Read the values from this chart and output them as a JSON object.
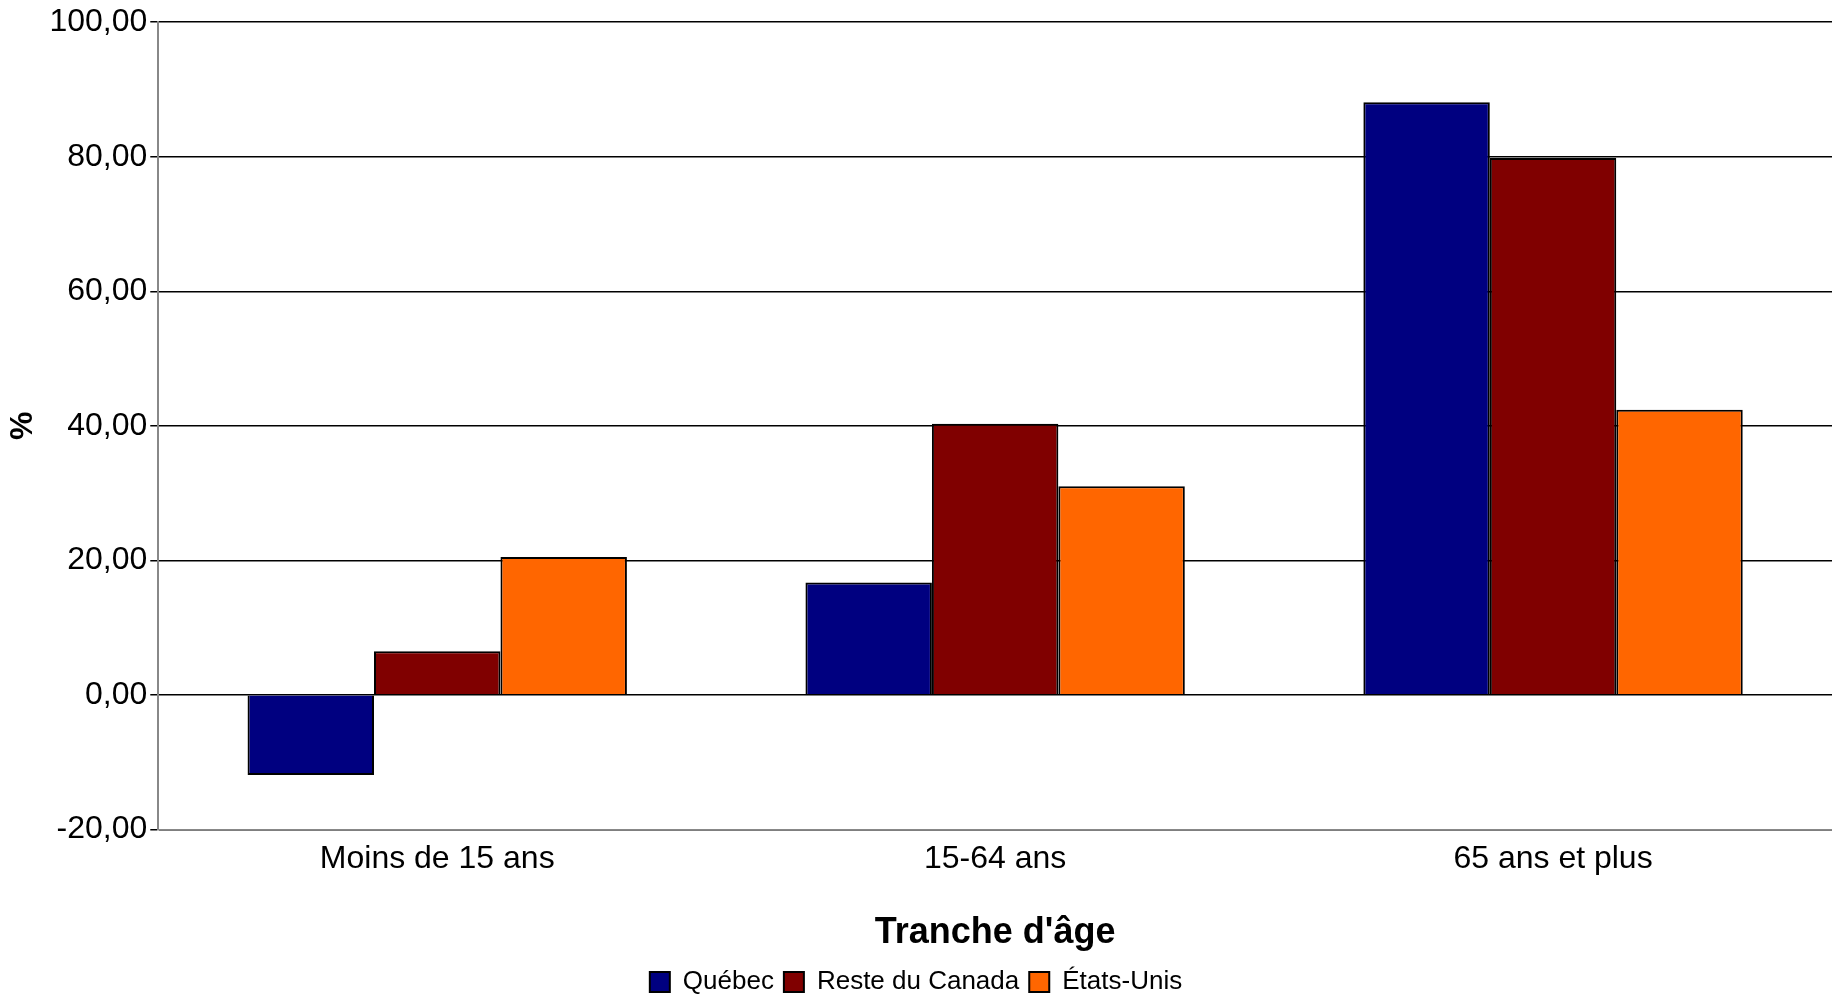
{
  "chart_data": {
    "type": "bar",
    "xlabel": "Tranche d'âge",
    "ylabel": "%",
    "categories": [
      "Moins de 15 ans",
      "15-64 ans",
      "65 ans et plus"
    ],
    "series": [
      {
        "name": "Québec",
        "color": "#000080",
        "values": [
          -11.9,
          16.7,
          88.1
        ]
      },
      {
        "name": "Reste du Canada",
        "color": "#800000",
        "values": [
          6.5,
          40.3,
          79.8
        ]
      },
      {
        "name": "États-Unis",
        "color": "#ff6600",
        "values": [
          20.5,
          31.0,
          42.4
        ]
      }
    ],
    "ylim": [
      -20,
      100
    ],
    "yticks": [
      {
        "value": -20,
        "label": "-20,00"
      },
      {
        "value": 0,
        "label": "0,00"
      },
      {
        "value": 20,
        "label": "20,00"
      },
      {
        "value": 40,
        "label": "40,00"
      },
      {
        "value": 60,
        "label": "60,00"
      },
      {
        "value": 80,
        "label": "80,00"
      },
      {
        "value": 100,
        "label": "100,00"
      }
    ],
    "grid": "y",
    "legend": "bottom"
  }
}
